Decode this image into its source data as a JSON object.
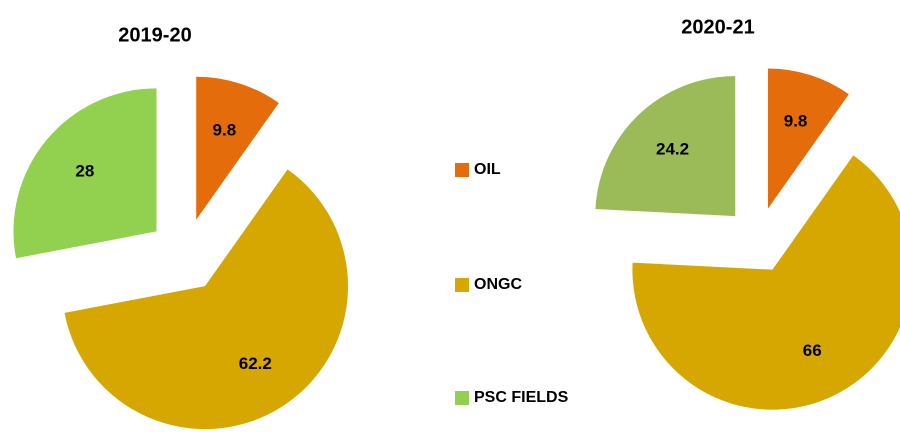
{
  "chart_data": [
    {
      "type": "pie",
      "title": "2019-20",
      "categories": [
        "OIL",
        "ONGC",
        "PSC FIELDS"
      ],
      "values": [
        9.8,
        62.2,
        28
      ],
      "colors": [
        "#e46c0a",
        "#d5a700",
        "#92d050"
      ]
    },
    {
      "type": "pie",
      "title": "2020-21",
      "categories": [
        "OIL",
        "ONGC",
        "PSC FIELDS"
      ],
      "values": [
        9.8,
        66,
        24.2
      ],
      "colors": [
        "#e46c0a",
        "#d5a700",
        "#9bbb59"
      ]
    }
  ]
}
